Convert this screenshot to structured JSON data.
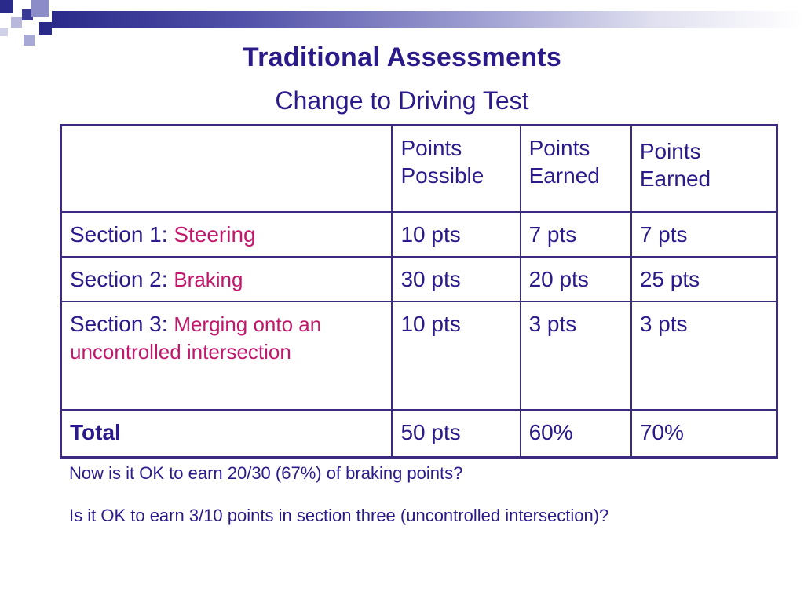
{
  "slide": {
    "title": "Traditional Assessments",
    "subtitle": "Change to Driving Test"
  },
  "table": {
    "headers": [
      "",
      "Points\nPossible",
      "Points\nEarned",
      "Points\nEarned"
    ],
    "rows": [
      {
        "label": "Section 1: ",
        "topic": "Steering",
        "possible": "10 pts",
        "earned_a": "7 pts",
        "earned_b": "7 pts"
      },
      {
        "label": "Section 2: ",
        "topic": "Braking",
        "possible": "30 pts",
        "earned_a": "20 pts",
        "earned_b": "25 pts"
      },
      {
        "label": "Section 3: ",
        "topic": "Merging onto an uncontrolled intersection",
        "possible": "10 pts",
        "earned_a": "3 pts",
        "earned_b": "3 pts"
      }
    ],
    "total": {
      "label": "Total",
      "possible": "50 pts",
      "earned_a": "60%",
      "earned_b": "70%"
    }
  },
  "questions": {
    "q1": "Now is it OK to earn 20/30 (67%) of braking points?",
    "q2": "Is it OK to earn 3/10 points in section three (uncontrolled intersection)?"
  },
  "colors": {
    "title": "#2a1a8a",
    "accent": "#c0186a",
    "border": "#3c2a7e"
  }
}
